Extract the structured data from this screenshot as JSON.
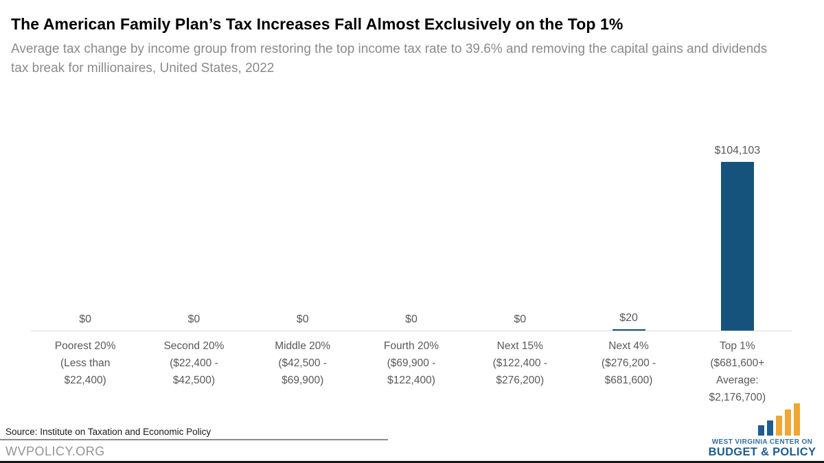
{
  "header": {
    "title": "The American Family Plan’s Tax Increases Fall Almost Exclusively on the Top 1%",
    "subtitle": "Average tax change by income group from restoring the top income tax rate to 39.6% and removing the capital gains and dividends tax break for millionaires, United States, 2022"
  },
  "chart_data": {
    "type": "bar",
    "title": "The American Family Plan’s Tax Increases Fall Almost Exclusively on the Top 1%",
    "subtitle": "Average tax change by income group from restoring the top income tax rate to 39.6% and removing the capital gains and dividends tax break for millionaires, United States, 2022",
    "categories": [
      "Poorest 20%\n(Less than\n$22,400)",
      "Second 20%\n($22,400 -\n$42,500)",
      "Middle 20%\n($42,500 -\n$69,900)",
      "Fourth 20%\n($69,900 -\n$122,400)",
      "Next 15%\n($122,400 -\n$276,200)",
      "Next 4%\n($276,200 -\n$681,600)",
      "Top 1%\n($681,600+\nAverage:\n$2,176,700)"
    ],
    "values": [
      0,
      0,
      0,
      0,
      0,
      20,
      104103
    ],
    "value_labels": [
      "$0",
      "$0",
      "$0",
      "$0",
      "$0",
      "$20",
      "$104,103"
    ],
    "xlabel": "",
    "ylabel": "",
    "ylim": [
      0,
      110000
    ],
    "grid": false,
    "legend": false,
    "bar_color": "#15537d",
    "axis_color": "#d9d9d9",
    "label_color": "#595959"
  },
  "footer": {
    "source": "Source: Institute on Taxation and Economic Policy",
    "website": "WVPOLICY.ORG",
    "logo": {
      "line1": "WEST VIRGINIA CENTER ON",
      "line2": "BUDGET & POLICY",
      "blue": "#1f5c8f",
      "gold": "#f0a632"
    }
  }
}
